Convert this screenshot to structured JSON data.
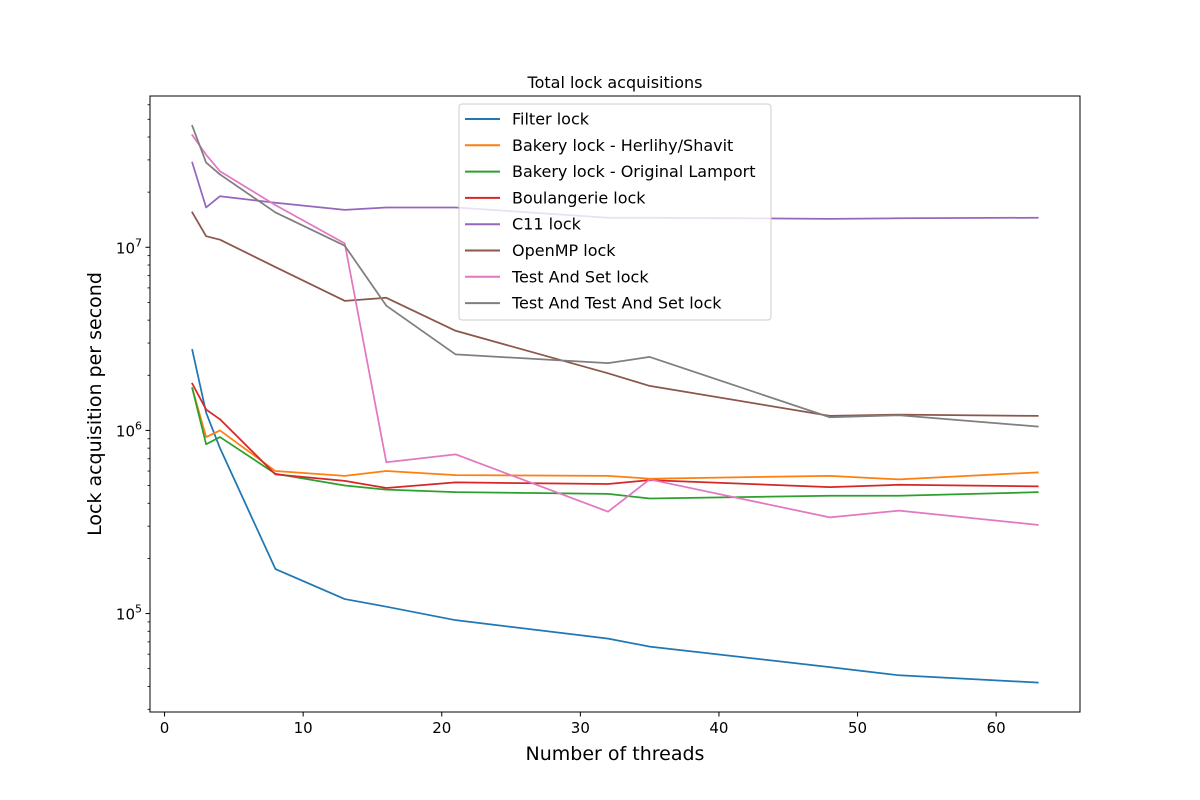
{
  "chart_data": {
    "type": "line",
    "title": "Total lock acquisitions",
    "xlabel": "Number of threads",
    "ylabel": "Lock acquisition per second",
    "xscale": "linear",
    "yscale": "log",
    "xlim": [
      -1.05,
      66.05
    ],
    "ylim": [
      29000,
      67000000
    ],
    "x_ticks": [
      0,
      10,
      20,
      30,
      40,
      50,
      60
    ],
    "x_tick_labels": [
      "0",
      "10",
      "20",
      "30",
      "40",
      "50",
      "60"
    ],
    "y_major_ticks": [
      100000,
      1000000,
      10000000
    ],
    "y_tick_labels": [
      {
        "base": "10",
        "exp": "5"
      },
      {
        "base": "10",
        "exp": "6"
      },
      {
        "base": "10",
        "exp": "7"
      }
    ],
    "legend_position": "upper center",
    "grid": false,
    "x": [
      2,
      3,
      4,
      8,
      13,
      16,
      21,
      32,
      35,
      48,
      53,
      63
    ],
    "series": [
      {
        "name": "Filter lock",
        "color": "#1f77b4",
        "values": [
          2750000,
          1250000,
          800000,
          175000,
          120000,
          109000,
          92000,
          73000,
          66000,
          51000,
          46000,
          42000
        ]
      },
      {
        "name": "Bakery lock - Herlihy/Shavit",
        "color": "#ff7f0e",
        "values": [
          1700000,
          920000,
          1000000,
          600000,
          565000,
          600000,
          570000,
          565000,
          545000,
          565000,
          540000,
          590000
        ]
      },
      {
        "name": "Bakery lock - Original Lamport",
        "color": "#2ca02c",
        "values": [
          1700000,
          840000,
          920000,
          580000,
          500000,
          475000,
          460000,
          450000,
          425000,
          440000,
          440000,
          460000
        ]
      },
      {
        "name": "Boulangerie lock",
        "color": "#d62728",
        "values": [
          1800000,
          1300000,
          1150000,
          575000,
          530000,
          485000,
          520000,
          510000,
          535000,
          490000,
          505000,
          495000
        ]
      },
      {
        "name": "C11 lock",
        "color": "#9467bd",
        "values": [
          29000000,
          16500000,
          19000000,
          17500000,
          16000000,
          16500000,
          16500000,
          14500000,
          14500000,
          14300000,
          14400000,
          14500000
        ]
      },
      {
        "name": "OpenMP lock",
        "color": "#8c564b",
        "values": [
          15500000,
          11500000,
          11000000,
          7800000,
          5100000,
          5300000,
          3500000,
          2050000,
          1750000,
          1200000,
          1220000,
          1200000
        ]
      },
      {
        "name": "Test And Set lock",
        "color": "#e377c2",
        "values": [
          41000000,
          32000000,
          26000000,
          17000000,
          10500000,
          670000,
          740000,
          360000,
          540000,
          335000,
          365000,
          305000
        ]
      },
      {
        "name": "Test And Test And Set lock",
        "color": "#7f7f7f",
        "values": [
          46000000,
          29000000,
          25000000,
          15500000,
          10200000,
          4800000,
          2600000,
          2330000,
          2520000,
          1180000,
          1210000,
          1050000
        ]
      }
    ]
  }
}
